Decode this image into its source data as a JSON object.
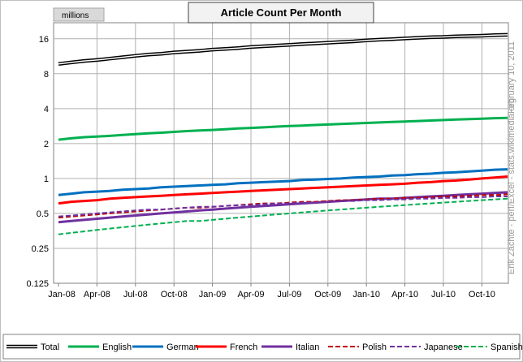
{
  "chart_data": {
    "type": "line",
    "title": "Article Count Per Month",
    "ylabel": "millions",
    "yscale": "log2",
    "ylim": [
      0.125,
      22
    ],
    "yticks": [
      {
        "v": 16,
        "label": "16"
      },
      {
        "v": 8,
        "label": "8"
      },
      {
        "v": 4,
        "label": "4"
      },
      {
        "v": 2,
        "label": "2"
      },
      {
        "v": 1,
        "label": "1"
      },
      {
        "v": 0.5,
        "label": "0.5"
      },
      {
        "v": 0.25,
        "label": "0.25"
      },
      {
        "v": 0.125,
        "label": "0.125"
      }
    ],
    "x": [
      "Jan-08",
      "Feb-08",
      "Mar-08",
      "Apr-08",
      "May-08",
      "Jun-08",
      "Jul-08",
      "Aug-08",
      "Sep-08",
      "Oct-08",
      "Nov-08",
      "Dec-08",
      "Jan-09",
      "Feb-09",
      "Mar-09",
      "Apr-09",
      "May-09",
      "Jun-09",
      "Jul-09",
      "Aug-09",
      "Sep-09",
      "Oct-09",
      "Nov-09",
      "Dec-09",
      "Jan-10",
      "Feb-10",
      "Mar-10",
      "Apr-10",
      "May-10",
      "Jun-10",
      "Jul-10",
      "Aug-10",
      "Sep-10",
      "Oct-10",
      "Nov-10",
      "Dec-10"
    ],
    "xticks": [
      "Jan-08",
      "Apr-08",
      "Jul-08",
      "Oct-08",
      "Jan-09",
      "Apr-09",
      "Jul-09",
      "Oct-09",
      "Jan-10",
      "Apr-10",
      "Jul-10",
      "Oct-10"
    ],
    "grid": true,
    "legend_position": "bottom",
    "series": [
      {
        "name": "Total",
        "color": "#000000",
        "style": "double",
        "values": [
          9.7,
          10.0,
          10.3,
          10.5,
          10.8,
          11.1,
          11.4,
          11.7,
          11.9,
          12.2,
          12.4,
          12.6,
          12.9,
          13.1,
          13.3,
          13.6,
          13.8,
          14.0,
          14.2,
          14.4,
          14.6,
          14.8,
          15.0,
          15.2,
          15.5,
          15.7,
          15.9,
          16.1,
          16.3,
          16.5,
          16.6,
          16.8,
          16.9,
          17.0,
          17.2,
          17.3
        ]
      },
      {
        "name": "English",
        "color": "#00b050",
        "style": "solid",
        "values": [
          2.16,
          2.22,
          2.27,
          2.3,
          2.33,
          2.37,
          2.41,
          2.45,
          2.48,
          2.52,
          2.56,
          2.59,
          2.62,
          2.66,
          2.7,
          2.73,
          2.76,
          2.8,
          2.83,
          2.86,
          2.89,
          2.92,
          2.95,
          2.98,
          3.01,
          3.04,
          3.07,
          3.1,
          3.13,
          3.16,
          3.19,
          3.22,
          3.25,
          3.28,
          3.31,
          3.33
        ]
      },
      {
        "name": "German",
        "color": "#0070c0",
        "style": "solid",
        "values": [
          0.72,
          0.74,
          0.76,
          0.77,
          0.78,
          0.8,
          0.81,
          0.82,
          0.84,
          0.85,
          0.86,
          0.87,
          0.88,
          0.89,
          0.91,
          0.92,
          0.93,
          0.94,
          0.95,
          0.97,
          0.98,
          0.99,
          1.0,
          1.02,
          1.03,
          1.04,
          1.06,
          1.07,
          1.09,
          1.1,
          1.12,
          1.13,
          1.15,
          1.17,
          1.19,
          1.2
        ]
      },
      {
        "name": "French",
        "color": "#ff0000",
        "style": "solid",
        "values": [
          0.61,
          0.63,
          0.64,
          0.65,
          0.67,
          0.68,
          0.69,
          0.7,
          0.71,
          0.72,
          0.73,
          0.74,
          0.75,
          0.76,
          0.77,
          0.78,
          0.79,
          0.8,
          0.81,
          0.82,
          0.83,
          0.84,
          0.85,
          0.86,
          0.87,
          0.88,
          0.89,
          0.9,
          0.92,
          0.93,
          0.95,
          0.96,
          0.98,
          1.0,
          1.02,
          1.04
        ]
      },
      {
        "name": "Italian",
        "color": "#7030a0",
        "style": "solid",
        "values": [
          0.42,
          0.43,
          0.44,
          0.45,
          0.46,
          0.47,
          0.48,
          0.49,
          0.5,
          0.51,
          0.52,
          0.53,
          0.54,
          0.55,
          0.56,
          0.57,
          0.58,
          0.59,
          0.6,
          0.61,
          0.62,
          0.63,
          0.64,
          0.65,
          0.66,
          0.67,
          0.67,
          0.68,
          0.69,
          0.7,
          0.71,
          0.72,
          0.73,
          0.74,
          0.75,
          0.76
        ]
      },
      {
        "name": "Polish",
        "color": "#c00000",
        "style": "dashed",
        "values": [
          0.46,
          0.47,
          0.48,
          0.49,
          0.5,
          0.51,
          0.52,
          0.53,
          0.54,
          0.55,
          0.56,
          0.56,
          0.57,
          0.58,
          0.59,
          0.6,
          0.61,
          0.61,
          0.62,
          0.63,
          0.63,
          0.64,
          0.65,
          0.65,
          0.66,
          0.67,
          0.67,
          0.68,
          0.68,
          0.69,
          0.7,
          0.7,
          0.71,
          0.72,
          0.72,
          0.73
        ]
      },
      {
        "name": "Japanese",
        "color": "#7030a0",
        "style": "dashed",
        "values": [
          0.47,
          0.48,
          0.49,
          0.5,
          0.51,
          0.52,
          0.53,
          0.54,
          0.54,
          0.55,
          0.56,
          0.57,
          0.57,
          0.58,
          0.59,
          0.59,
          0.6,
          0.61,
          0.61,
          0.62,
          0.62,
          0.63,
          0.64,
          0.64,
          0.65,
          0.65,
          0.66,
          0.66,
          0.67,
          0.67,
          0.68,
          0.68,
          0.69,
          0.69,
          0.7,
          0.7
        ]
      },
      {
        "name": "Spanish",
        "color": "#00b050",
        "style": "dashed",
        "values": [
          0.33,
          0.34,
          0.35,
          0.36,
          0.37,
          0.38,
          0.39,
          0.4,
          0.41,
          0.42,
          0.43,
          0.43,
          0.44,
          0.45,
          0.46,
          0.47,
          0.48,
          0.49,
          0.5,
          0.51,
          0.52,
          0.53,
          0.54,
          0.55,
          0.56,
          0.57,
          0.58,
          0.59,
          0.6,
          0.61,
          0.62,
          0.63,
          0.64,
          0.65,
          0.66,
          0.67
        ]
      }
    ]
  },
  "side_note": "Erik Zachte  -  perl/Excel  -  stats.wikimedia.org",
  "date_note": "February 10, 2011"
}
